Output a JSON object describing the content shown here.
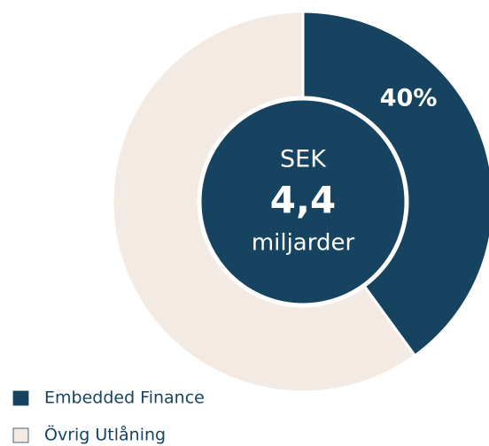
{
  "chart_data": {
    "type": "donut",
    "categories": [
      "Embedded Finance",
      "Övrig Utlåning"
    ],
    "values": [
      40,
      60
    ],
    "value_labels": [
      "40%",
      null
    ],
    "colors": [
      "#16435f",
      "#f3ebe3"
    ],
    "center_text": [
      "SEK",
      "4,4",
      "miljarder"
    ],
    "legend": "bottom-left"
  }
}
